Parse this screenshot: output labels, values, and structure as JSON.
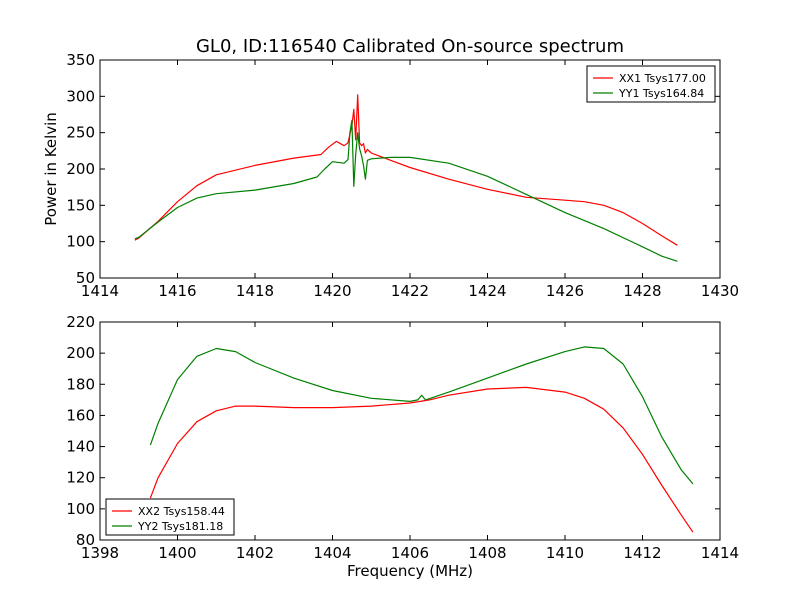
{
  "chart_data": [
    {
      "type": "line",
      "title": "GL0, ID:116540 Calibrated On-source spectrum",
      "xlabel": "",
      "ylabel": "Power in Kelvin",
      "xlim": [
        1414,
        1430
      ],
      "ylim": [
        50,
        350
      ],
      "xticks": [
        "1414",
        "1416",
        "1418",
        "1420",
        "1422",
        "1424",
        "1426",
        "1428",
        "1430"
      ],
      "yticks": [
        "50",
        "100",
        "150",
        "200",
        "250",
        "300",
        "350"
      ],
      "grid": false,
      "legend": "top-right",
      "series": [
        {
          "name": "XX1 Tsys177.00",
          "color": "#ff0000",
          "x": [
            1414.9,
            1415.0,
            1415.5,
            1416.0,
            1416.5,
            1417.0,
            1418.0,
            1419.0,
            1419.7,
            1419.9,
            1420.1,
            1420.3,
            1420.4,
            1420.5,
            1420.55,
            1420.6,
            1420.65,
            1420.7,
            1420.75,
            1420.8,
            1420.85,
            1420.9,
            1421.0,
            1421.5,
            1422.0,
            1423.0,
            1424.0,
            1425.0,
            1426.0,
            1426.5,
            1427.0,
            1427.5,
            1428.0,
            1428.5,
            1428.9
          ],
          "y": [
            102,
            105,
            128,
            155,
            177,
            192,
            205,
            215,
            220,
            230,
            238,
            232,
            236,
            260,
            282,
            240,
            302,
            236,
            232,
            235,
            222,
            227,
            222,
            212,
            202,
            186,
            172,
            161,
            157,
            155,
            150,
            140,
            125,
            108,
            95
          ]
        },
        {
          "name": "YY1 Tsys164.84",
          "color": "#008000",
          "x": [
            1414.9,
            1415.0,
            1415.5,
            1416.0,
            1416.5,
            1417.0,
            1418.0,
            1419.0,
            1419.6,
            1419.8,
            1420.0,
            1420.3,
            1420.4,
            1420.45,
            1420.5,
            1420.55,
            1420.6,
            1420.65,
            1420.7,
            1420.75,
            1420.8,
            1420.85,
            1420.9,
            1421.0,
            1421.5,
            1422.0,
            1423.0,
            1424.0,
            1425.0,
            1426.0,
            1427.0,
            1428.0,
            1428.5,
            1428.9
          ],
          "y": [
            104,
            106,
            127,
            147,
            160,
            166,
            171,
            180,
            189,
            200,
            210,
            208,
            213,
            250,
            267,
            176,
            220,
            250,
            228,
            218,
            205,
            186,
            212,
            214,
            216,
            216,
            208,
            190,
            165,
            140,
            118,
            93,
            80,
            73
          ]
        }
      ]
    },
    {
      "type": "line",
      "title": "",
      "xlabel": "Frequency (MHz)",
      "ylabel": "",
      "xlim": [
        1398,
        1414
      ],
      "ylim": [
        80,
        220
      ],
      "xticks": [
        "1398",
        "1400",
        "1402",
        "1404",
        "1406",
        "1408",
        "1410",
        "1412",
        "1414"
      ],
      "yticks": [
        "80",
        "100",
        "120",
        "140",
        "160",
        "180",
        "200",
        "220"
      ],
      "grid": false,
      "legend": "bottom-left",
      "series": [
        {
          "name": "XX2 Tsys158.44",
          "color": "#ff0000",
          "x": [
            1399.3,
            1399.5,
            1400.0,
            1400.5,
            1401.0,
            1401.5,
            1402.0,
            1403.0,
            1404.0,
            1405.0,
            1406.0,
            1406.5,
            1407.0,
            1408.0,
            1409.0,
            1410.0,
            1410.5,
            1411.0,
            1411.5,
            1412.0,
            1412.5,
            1413.0,
            1413.3
          ],
          "y": [
            107,
            120,
            142,
            156,
            163,
            166,
            166,
            165,
            165,
            166,
            168,
            170,
            173,
            177,
            178,
            175,
            171,
            164,
            152,
            135,
            115,
            96,
            85
          ]
        },
        {
          "name": "YY2 Tsys181.18",
          "color": "#008000",
          "x": [
            1399.3,
            1399.5,
            1400.0,
            1400.5,
            1401.0,
            1401.5,
            1402.0,
            1403.0,
            1404.0,
            1405.0,
            1406.0,
            1406.2,
            1406.3,
            1406.4,
            1407.0,
            1408.0,
            1409.0,
            1410.0,
            1410.5,
            1411.0,
            1411.5,
            1412.0,
            1412.5,
            1413.0,
            1413.3
          ],
          "y": [
            141,
            155,
            183,
            198,
            203,
            201,
            194,
            184,
            176,
            171,
            169,
            170,
            173,
            170,
            175,
            184,
            193,
            201,
            204,
            203,
            193,
            172,
            146,
            125,
            116
          ]
        }
      ]
    }
  ]
}
